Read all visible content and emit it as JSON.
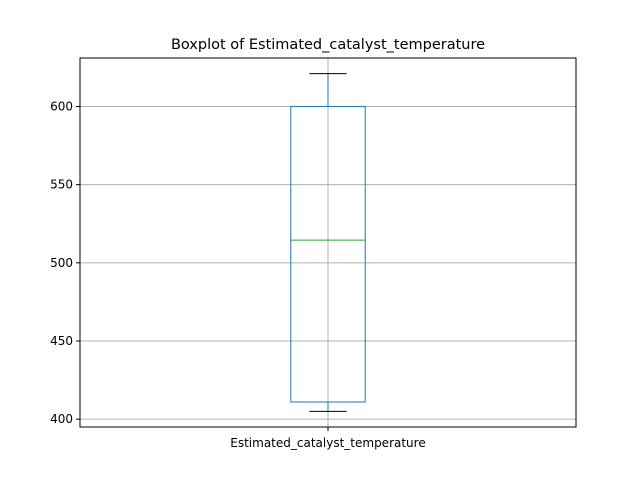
{
  "chart_data": {
    "type": "boxplot",
    "title": "Boxplot of Estimated_catalyst_temperature",
    "xlabel": "",
    "ylabel": "",
    "categories": [
      "Estimated_catalyst_temperature"
    ],
    "series": [
      {
        "whisker_low": 405,
        "q1": 411,
        "median": 514.5,
        "q3": 600,
        "whisker_high": 621
      }
    ],
    "ylim": [
      395,
      631
    ],
    "yticks": [
      400,
      450,
      500,
      550,
      600
    ],
    "grid": true,
    "colors": {
      "box": "#1f77b4",
      "median": "#2ca02c",
      "whisker": "#1f77b4",
      "cap": "#000000",
      "grid": "#b0b0b0",
      "axes": "#000000"
    }
  }
}
